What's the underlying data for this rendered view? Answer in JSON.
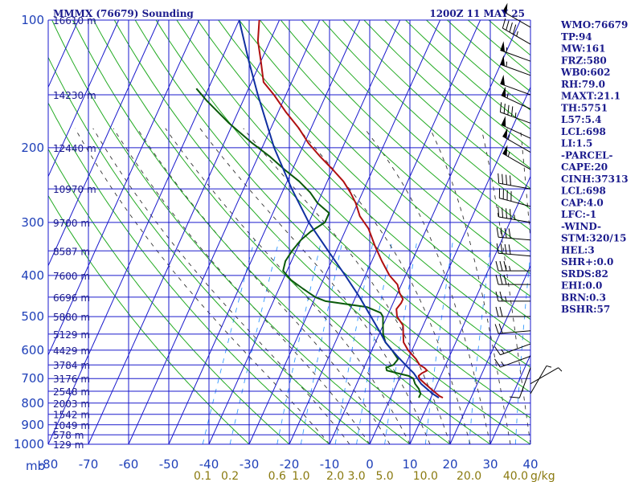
{
  "header": {
    "station": "MMMX (76679) Sounding",
    "time": "1200Z 11 MAY 25"
  },
  "indices": [
    "WMO:76679",
    "TP:94",
    "MW:161",
    "FRZ:580",
    "WB0:602",
    "RH:79.0",
    "MAXT:21.1",
    "TH:5751",
    "L57:5.4",
    "LCL:698",
    "LI:1.5",
    "-PARCEL-",
    "CAPE:20",
    "CINH:37313",
    "LCL:698",
    "CAP:4.0",
    "LFC:-1",
    "-WIND-",
    "STM:320/15",
    "HEL:3",
    "SHR+:0.0",
    "SRDS:82",
    "EHI:0.0",
    "BRN:0.3",
    "BSHR:57"
  ],
  "colors": {
    "isobar": "#1a1acc",
    "isotherm": "#1a1acc",
    "dry_adiabat": "#22aa22",
    "moist_adiabat": "#333333",
    "mixing_ratio": "#3399ff",
    "temperature": "#b01010",
    "dewpoint": "#0a5a0a",
    "parcel": "#1030a0",
    "wind": "#000000"
  },
  "chart_data": {
    "type": "line",
    "title": "MMMX (76679) Sounding",
    "subtitle": "1200Z 11 MAY 25",
    "pressure_axis": {
      "unit_label": "mb",
      "ticks": [
        100,
        200,
        300,
        400,
        500,
        600,
        700,
        800,
        900,
        1000
      ],
      "lines": [
        100,
        150,
        200,
        250,
        300,
        350,
        400,
        450,
        500,
        550,
        600,
        650,
        700,
        750,
        800,
        850,
        900,
        950,
        1000
      ],
      "range": [
        100,
        1000
      ],
      "scale": "log"
    },
    "height_labels": [
      {
        "p": 100,
        "label": "16610 m"
      },
      {
        "p": 150,
        "label": "14230 m"
      },
      {
        "p": 200,
        "label": "12440 m"
      },
      {
        "p": 250,
        "label": "10970 m"
      },
      {
        "p": 300,
        "label": "9700 m"
      },
      {
        "p": 350,
        "label": "8587 m"
      },
      {
        "p": 400,
        "label": "7600 m"
      },
      {
        "p": 450,
        "label": "6696 m"
      },
      {
        "p": 500,
        "label": "5880 m"
      },
      {
        "p": 550,
        "label": "5129 m"
      },
      {
        "p": 600,
        "label": "4429 m"
      },
      {
        "p": 650,
        "label": "3784 m"
      },
      {
        "p": 700,
        "label": "3176 m"
      },
      {
        "p": 750,
        "label": "2548 m"
      },
      {
        "p": 800,
        "label": "2003 m"
      },
      {
        "p": 850,
        "label": "1542 m"
      },
      {
        "p": 900,
        "label": "1049 m"
      },
      {
        "p": 950,
        "label": "578 m"
      },
      {
        "p": 1000,
        "label": "129 m"
      }
    ],
    "temperature_axis": {
      "ticks": [
        -80,
        -70,
        -60,
        -50,
        -40,
        -30,
        -20,
        -10,
        0,
        10,
        20,
        30,
        40
      ],
      "tick_labels": [
        "-80",
        "-70",
        "-60",
        "-50",
        "-40",
        "-30",
        "-20",
        "-10",
        "0",
        "10",
        "20",
        "30",
        "40"
      ],
      "range": [
        -80,
        40
      ]
    },
    "mixing_ratio_labels": [
      "0.1",
      "0.2",
      "0.6",
      "1.0",
      "2.0",
      "3.0",
      "5.0",
      "10.0",
      "20.0",
      "40.0"
    ],
    "mixing_ratio_unit": "g/kg",
    "series": [
      {
        "key": "temperature",
        "points": [
          [
            777,
            13.0
          ],
          [
            770,
            12.0
          ],
          [
            760,
            11.0
          ],
          [
            740,
            9.0
          ],
          [
            720,
            7.0
          ],
          [
            700,
            5.0
          ],
          [
            690,
            4.5
          ],
          [
            680,
            5.0
          ],
          [
            670,
            6.0
          ],
          [
            660,
            5.0
          ],
          [
            650,
            3.5
          ],
          [
            630,
            2.0
          ],
          [
            600,
            -1.0
          ],
          [
            575,
            -3.0
          ],
          [
            550,
            -4.0
          ],
          [
            525,
            -5.0
          ],
          [
            500,
            -7.5
          ],
          [
            480,
            -8.5
          ],
          [
            465,
            -8.0
          ],
          [
            455,
            -8.0
          ],
          [
            440,
            -9.5
          ],
          [
            420,
            -11.0
          ],
          [
            400,
            -14.0
          ],
          [
            370,
            -17.5
          ],
          [
            340,
            -21.0
          ],
          [
            310,
            -24.5
          ],
          [
            290,
            -28.0
          ],
          [
            270,
            -30.5
          ],
          [
            255,
            -33.0
          ],
          [
            240,
            -36.0
          ],
          [
            225,
            -40.0
          ],
          [
            210,
            -44.5
          ],
          [
            195,
            -49.0
          ],
          [
            180,
            -53.0
          ],
          [
            165,
            -58.0
          ],
          [
            150,
            -63.0
          ],
          [
            140,
            -67.0
          ],
          [
            125,
            -70.0
          ],
          [
            112,
            -73.0
          ],
          [
            100,
            -75.0
          ]
        ]
      },
      {
        "key": "dewpoint",
        "points": [
          [
            777,
            7.0
          ],
          [
            760,
            7.0
          ],
          [
            740,
            6.0
          ],
          [
            720,
            4.5
          ],
          [
            700,
            3.5
          ],
          [
            690,
            2.0
          ],
          [
            680,
            -1.0
          ],
          [
            670,
            -4.0
          ],
          [
            660,
            -4.5
          ],
          [
            650,
            -3.0
          ],
          [
            630,
            -2.5
          ],
          [
            600,
            -5.0
          ],
          [
            575,
            -7.5
          ],
          [
            550,
            -9.0
          ],
          [
            525,
            -10.0
          ],
          [
            500,
            -11.0
          ],
          [
            490,
            -12.0
          ],
          [
            475,
            -16.0
          ],
          [
            460,
            -27.0
          ],
          [
            450,
            -30.0
          ],
          [
            430,
            -34.0
          ],
          [
            410,
            -38.0
          ],
          [
            390,
            -41.0
          ],
          [
            370,
            -41.5
          ],
          [
            350,
            -41.0
          ],
          [
            330,
            -40.0
          ],
          [
            315,
            -38.5
          ],
          [
            300,
            -36.0
          ],
          [
            285,
            -36.0
          ],
          [
            270,
            -40.0
          ],
          [
            255,
            -43.0
          ],
          [
            240,
            -47.0
          ],
          [
            225,
            -52.0
          ],
          [
            210,
            -57.0
          ],
          [
            195,
            -63.0
          ],
          [
            175,
            -71.0
          ],
          [
            155,
            -79.0
          ],
          [
            145,
            -83.0
          ]
        ]
      },
      {
        "key": "parcel",
        "points": [
          [
            777,
            12.0
          ],
          [
            760,
            10.0
          ],
          [
            740,
            8.0
          ],
          [
            720,
            6.0
          ],
          [
            700,
            4.5
          ],
          [
            680,
            3.0
          ],
          [
            650,
            0.0
          ],
          [
            620,
            -3.0
          ],
          [
            600,
            -5.0
          ],
          [
            575,
            -7.5
          ],
          [
            550,
            -9.5
          ],
          [
            500,
            -14.0
          ],
          [
            450,
            -19.0
          ],
          [
            400,
            -25.0
          ],
          [
            350,
            -32.0
          ],
          [
            300,
            -40.0
          ],
          [
            250,
            -48.0
          ],
          [
            200,
            -57.0
          ],
          [
            150,
            -67.0
          ],
          [
            125,
            -73.0
          ],
          [
            100,
            -80.0
          ]
        ]
      }
    ],
    "wind_barbs": [
      {
        "p": 104,
        "dir": 300,
        "spd": 50
      },
      {
        "p": 114,
        "dir": 300,
        "spd": 45
      },
      {
        "p": 125,
        "dir": 290,
        "spd": 55
      },
      {
        "p": 135,
        "dir": 290,
        "spd": 55
      },
      {
        "p": 150,
        "dir": 290,
        "spd": 50
      },
      {
        "p": 162,
        "dir": 295,
        "spd": 55
      },
      {
        "p": 175,
        "dir": 290,
        "spd": 45
      },
      {
        "p": 190,
        "dir": 295,
        "spd": 50
      },
      {
        "p": 205,
        "dir": 300,
        "spd": 55
      },
      {
        "p": 225,
        "dir": 300,
        "spd": 55
      },
      {
        "p": 250,
        "dir": 280,
        "spd": 40
      },
      {
        "p": 275,
        "dir": 285,
        "spd": 40
      },
      {
        "p": 300,
        "dir": 280,
        "spd": 45
      },
      {
        "p": 330,
        "dir": 275,
        "spd": 40
      },
      {
        "p": 360,
        "dir": 275,
        "spd": 40
      },
      {
        "p": 390,
        "dir": 270,
        "spd": 35
      },
      {
        "p": 420,
        "dir": 270,
        "spd": 30
      },
      {
        "p": 460,
        "dir": 270,
        "spd": 25
      },
      {
        "p": 500,
        "dir": 270,
        "spd": 20
      },
      {
        "p": 540,
        "dir": 265,
        "spd": 20
      },
      {
        "p": 580,
        "dir": 250,
        "spd": 15
      },
      {
        "p": 620,
        "dir": 250,
        "spd": 15
      },
      {
        "p": 660,
        "dir": 200,
        "spd": 10
      },
      {
        "p": 720,
        "dir": 60,
        "spd": 5
      },
      {
        "p": 760,
        "dir": 30,
        "spd": 5
      }
    ]
  }
}
